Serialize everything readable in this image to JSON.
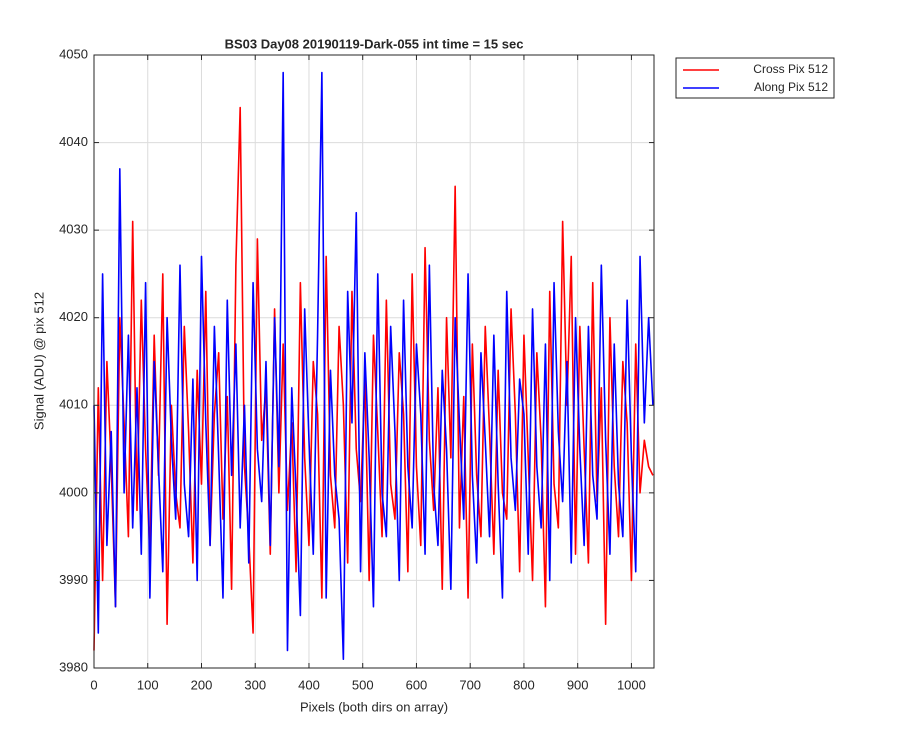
{
  "chart_data": {
    "type": "line",
    "title": "BS03 Day08 20190119-Dark-055 int time = 15 sec",
    "xlabel": "Pixels (both dirs on array)",
    "ylabel": "Signal (ADU) @ pix 512",
    "x": [
      0,
      8,
      16,
      24,
      32,
      40,
      48,
      56,
      64,
      72,
      80,
      88,
      96,
      104,
      112,
      120,
      128,
      136,
      144,
      152,
      160,
      168,
      176,
      184,
      192,
      200,
      208,
      216,
      224,
      232,
      240,
      248,
      256,
      264,
      272,
      280,
      288,
      296,
      304,
      312,
      320,
      328,
      336,
      344,
      352,
      360,
      368,
      376,
      384,
      392,
      400,
      408,
      416,
      424,
      432,
      440,
      448,
      456,
      464,
      472,
      480,
      488,
      496,
      504,
      512,
      520,
      528,
      536,
      544,
      552,
      560,
      568,
      576,
      584,
      592,
      600,
      608,
      616,
      624,
      632,
      640,
      648,
      656,
      664,
      672,
      680,
      688,
      696,
      704,
      712,
      720,
      728,
      736,
      744,
      752,
      760,
      768,
      776,
      784,
      792,
      800,
      808,
      816,
      824,
      832,
      840,
      848,
      856,
      864,
      872,
      880,
      888,
      896,
      904,
      912,
      920,
      928,
      936,
      944,
      952,
      960,
      968,
      976,
      984,
      992,
      1000,
      1008,
      1016,
      1024,
      1032,
      1040
    ],
    "series": [
      {
        "name": "Cross Pix 512",
        "color": "#ff0000",
        "values": [
          3982,
          4012,
          3990,
          4015,
          4003,
          3987,
          4020,
          4008,
          3995,
          4031,
          3998,
          4022,
          4005,
          3993,
          4018,
          4002,
          4025,
          3985,
          4010,
          4000,
          3996,
          4019,
          4007,
          3992,
          4014,
          4001,
          4023,
          3994,
          4009,
          4016,
          3997,
          4011,
          3989,
          4026,
          4044,
          4003,
          3995,
          3984,
          4029,
          4006,
          4012,
          3993,
          4021,
          4000,
          4017,
          3998,
          4008,
          3991,
          4024,
          4004,
          3994,
          4015,
          4009,
          3988,
          4027,
          4002,
          3996,
          4019,
          4010,
          3992,
          4023,
          4005,
          3999,
          4013,
          3990,
          4018,
          4007,
          3995,
          4022,
          4001,
          3997,
          4016,
          4009,
          3991,
          4025,
          4003,
          3994,
          4028,
          4006,
          3998,
          4012,
          3989,
          4020,
          4004,
          4035,
          3996,
          4011,
          3988,
          4017,
          4002,
          3995,
          4019,
          4007,
          3993,
          4014,
          4000,
          3997,
          4021,
          4009,
          3991,
          4018,
          4004,
          3990,
          4016,
          4006,
          3987,
          4023,
          4001,
          3996,
          4031,
          4010,
          4027,
          3993,
          4019,
          4005,
          3992,
          4024,
          3999,
          4012,
          3985,
          4020,
          4003,
          3995,
          4015,
          4008,
          3990,
          4017,
          4000,
          4006,
          4003,
          4002
        ]
      },
      {
        "name": "Along Pix 512",
        "color": "#0000ff",
        "values": [
          4010,
          3984,
          4025,
          3994,
          4007,
          3987,
          4037,
          4000,
          4018,
          3996,
          4012,
          3993,
          4024,
          3988,
          4015,
          4003,
          3991,
          4020,
          4006,
          3997,
          4026,
          4001,
          3995,
          4013,
          3990,
          4027,
          4008,
          3994,
          4019,
          4004,
          3988,
          4022,
          4002,
          4017,
          3996,
          4010,
          3992,
          4024,
          4005,
          3999,
          4015,
          3994,
          4020,
          4003,
          4048,
          3982,
          4012,
          4000,
          3986,
          4021,
          4006,
          3993,
          4018,
          4048,
          3988,
          4014,
          4002,
          3997,
          3981,
          4023,
          4008,
          4032,
          3991,
          4016,
          4004,
          3987,
          4025,
          4000,
          3995,
          4019,
          4007,
          3990,
          4022,
          4003,
          3996,
          4017,
          4009,
          3993,
          4026,
          4001,
          3994,
          4014,
          4005,
          3989,
          4020,
          4008,
          3997,
          4025,
          4002,
          3992,
          4016,
          4006,
          3995,
          4018,
          4001,
          3988,
          4023,
          4004,
          3998,
          4013,
          4009,
          3993,
          4021,
          4003,
          3996,
          4017,
          3990,
          4024,
          4007,
          3999,
          4015,
          3992,
          4020,
          4005,
          3994,
          4019,
          4002,
          3997,
          4026,
          4006,
          3993,
          4017,
          4001,
          3995,
          4022,
          4004,
          3991,
          4027,
          4008,
          4020,
          4010
        ]
      }
    ],
    "xlim": [
      0,
      1042
    ],
    "xticks": [
      0,
      100,
      200,
      300,
      400,
      500,
      600,
      700,
      800,
      900,
      1000
    ],
    "ylim": [
      3980,
      4050
    ],
    "yticks": [
      3980,
      3990,
      4000,
      4010,
      4020,
      4030,
      4040,
      4050
    ],
    "grid": true,
    "legend": "outside-top-right"
  }
}
